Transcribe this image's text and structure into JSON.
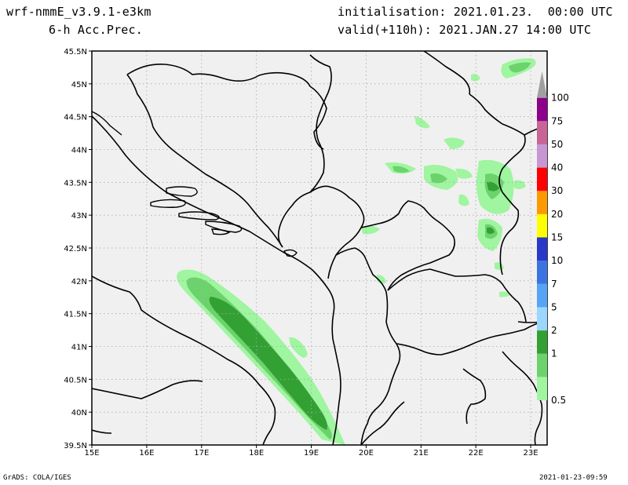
{
  "header": {
    "model": "wrf-nmmE_v3.9.1-e3km",
    "field": "6-h Acc.Prec.",
    "initialisation": "initialisation: 2021.01.23.  00:00 UTC",
    "valid": "valid(+110h): 2021.JAN.27 14:00 UTC"
  },
  "footer": {
    "left": "GrADS: COLA/IGES",
    "right": "2021-01-23-09:59"
  },
  "map": {
    "lon_ticks": [
      "15E",
      "16E",
      "17E",
      "18E",
      "19E",
      "20E",
      "21E",
      "22E",
      "23E"
    ],
    "lat_ticks": [
      "45.5N",
      "45N",
      "44.5N",
      "44N",
      "43.5N",
      "43N",
      "42.5N",
      "42N",
      "41.5N",
      "41N",
      "40.5N",
      "40N",
      "39.5N"
    ],
    "lon_range": [
      15,
      23.3
    ],
    "lat_range": [
      39.5,
      45.5
    ],
    "land_color": "#f0f0f0",
    "grid": "dotted"
  },
  "colorbar": {
    "labels": [
      "0.5",
      "1",
      "2",
      "5",
      "7",
      "10",
      "15",
      "20",
      "30",
      "40",
      "50",
      "75",
      "100"
    ],
    "colors": [
      "#a0f5a0",
      "#6cd36c",
      "#33a033",
      "#9bd6ff",
      "#55a4f5",
      "#3a74e0",
      "#2838c8",
      "#ffff00",
      "#ff9900",
      "#ff0000",
      "#c896d2",
      "#c86496",
      "#8c008c",
      "#a0a0a0"
    ]
  }
}
